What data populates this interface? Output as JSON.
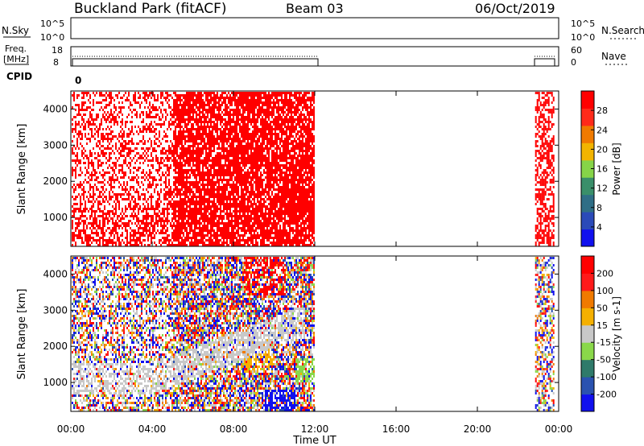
{
  "header": {
    "station": "Buckland Park (fitACF)",
    "beam": "Beam 03",
    "date": "06/Oct/2019"
  },
  "top_panels": {
    "nsky": {
      "label": "N.Sky",
      "ticks": [
        "10^5",
        "10^0"
      ],
      "right_ticks": [
        "10^5",
        "10^0"
      ],
      "right_label": "N.Search"
    },
    "freq": {
      "label_line1": "Freq.",
      "label_line2": "[MHz]",
      "ticks": [
        "18",
        "8"
      ],
      "right_ticks": [
        "60",
        "0"
      ],
      "right_label": "Nave"
    },
    "cpid": {
      "label": "CPID",
      "value": "0"
    }
  },
  "chart_data": [
    {
      "type": "heatmap",
      "name": "power",
      "ylabel": "Slant Range [km]",
      "yticks": [
        "1000",
        "2000",
        "3000",
        "4000"
      ],
      "ylim": [
        200,
        4500
      ],
      "xlim": [
        "00:00",
        "24:00"
      ],
      "data_windows_ut": [
        [
          0.0,
          12.0
        ],
        [
          22.8,
          23.75
        ]
      ],
      "colorbar": {
        "label": "Power [dB]",
        "ticks": [
          "28",
          "24",
          "20",
          "16",
          "12",
          "8",
          "4"
        ],
        "colors": [
          "#1010ee",
          "#2b4ab8",
          "#2f6e86",
          "#3a8f6a",
          "#86d448",
          "#f2b400",
          "#f07a00",
          "#ff2a1a",
          "#ff0000"
        ]
      },
      "dominant_color": "#ff0000"
    },
    {
      "type": "heatmap",
      "name": "velocity",
      "ylabel": "Slant Range [km]",
      "yticks": [
        "1000",
        "2000",
        "3000",
        "4000"
      ],
      "ylim": [
        200,
        4500
      ],
      "xlim": [
        "00:00",
        "24:00"
      ],
      "data_windows_ut": [
        [
          0.0,
          12.0
        ],
        [
          22.8,
          23.75
        ]
      ],
      "colorbar": {
        "label": "Velocity [m s-1]",
        "ticks": [
          "200",
          "100",
          "50",
          "15",
          "-15",
          "-50",
          "-100",
          "-200"
        ],
        "colors": [
          "#1010ee",
          "#2a52b0",
          "#2f7a6a",
          "#8ad84a",
          "#c8c8c8",
          "#f5b000",
          "#f07a00",
          "#ff1a1a",
          "#ff0000"
        ]
      }
    }
  ],
  "x_axis": {
    "ticks": [
      "00:00",
      "04:00",
      "08:00",
      "12:00",
      "16:00",
      "20:00",
      "00:00"
    ],
    "label": "Time UT"
  }
}
